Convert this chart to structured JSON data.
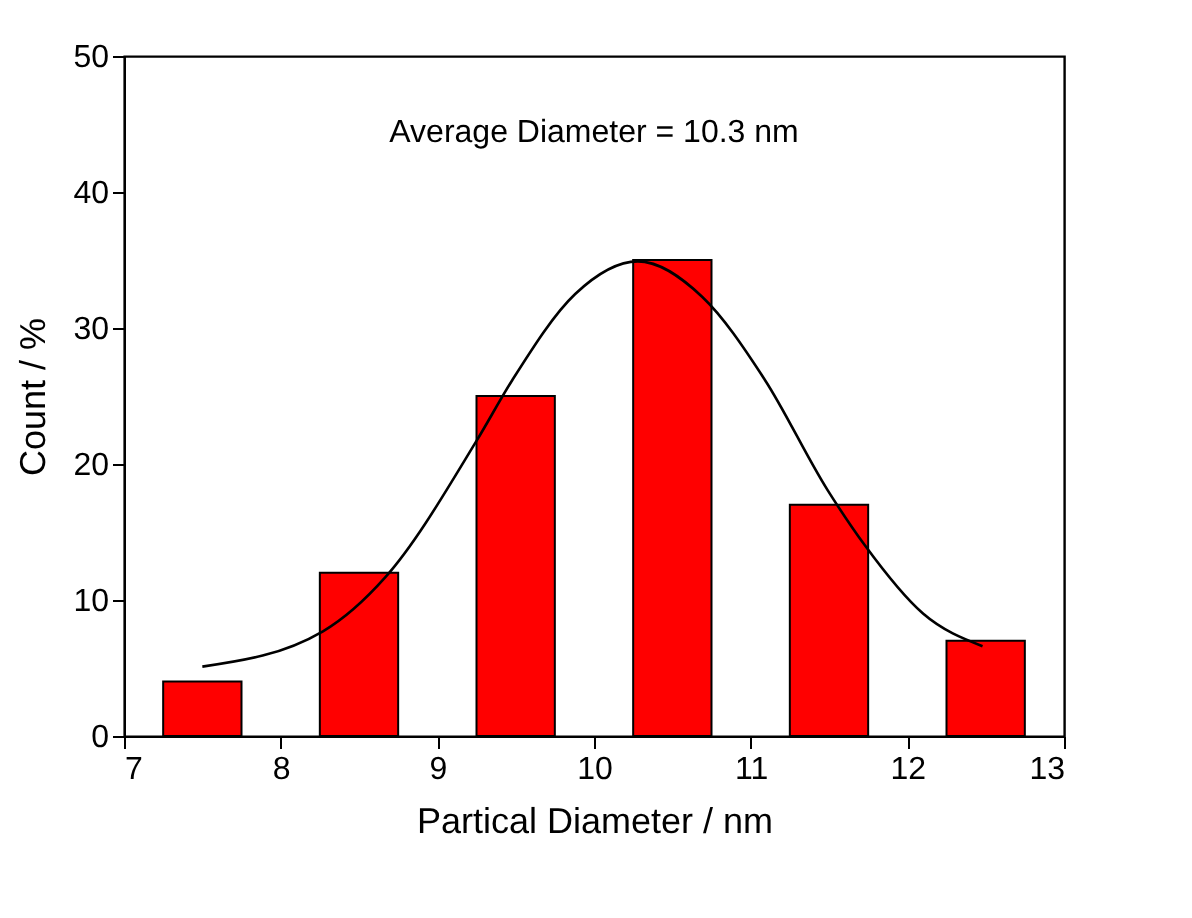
{
  "chart_data": {
    "type": "bar",
    "xlabel": "Partical Diameter / nm",
    "ylabel": "Count / %",
    "annotations": [
      "Average Diameter = 10.3 nm"
    ],
    "x": [
      7.5,
      8.5,
      9.5,
      10.5,
      11.5,
      12.5
    ],
    "series": [
      {
        "color": "#ff0000",
        "values": [
          4,
          12,
          25,
          35,
          17,
          7
        ]
      },
      {
        "type": "line",
        "color": "#000000",
        "marker": "none",
        "line_style": "solid",
        "x": [
          7.5,
          8.27,
          8.67,
          9.25,
          9.48,
          9.88,
          10.28,
          10.69,
          11.09,
          11.49,
          11.73,
          12.1,
          12.48
        ],
        "values": [
          5.1,
          7.7,
          11.7,
          21.7,
          26.2,
          32.5,
          34.9,
          32.3,
          26.2,
          18.1,
          14.0,
          9.0,
          6.6
        ]
      }
    ],
    "xlim": [
      7,
      13
    ],
    "xticks": [
      7,
      8,
      9,
      10,
      11,
      12,
      13
    ],
    "ylim": [
      0,
      50
    ],
    "yticks": [
      0,
      10,
      20,
      30,
      40,
      50
    ],
    "grid": false
  }
}
